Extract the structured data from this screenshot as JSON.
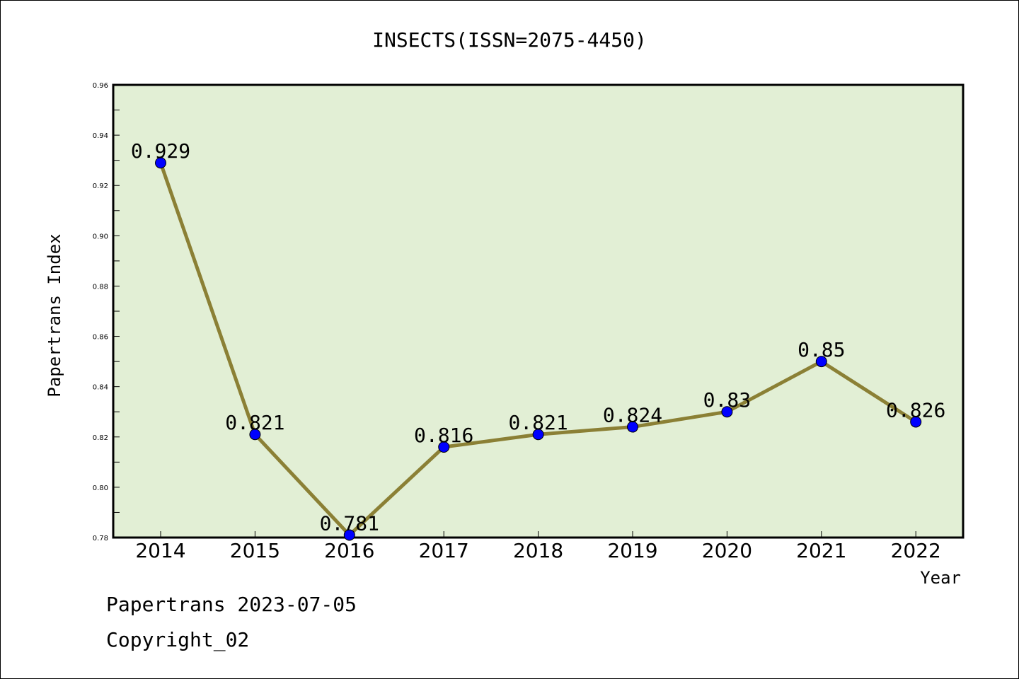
{
  "chart_data": {
    "type": "line",
    "title": "INSECTS(ISSN=2075-4450)",
    "xlabel": "Year",
    "ylabel": "Papertrans Index",
    "categories": [
      "2014",
      "2015",
      "2016",
      "2017",
      "2018",
      "2019",
      "2020",
      "2021",
      "2022"
    ],
    "values": [
      0.929,
      0.821,
      0.781,
      0.816,
      0.821,
      0.824,
      0.83,
      0.85,
      0.826
    ],
    "data_labels": [
      "0.929",
      "0.821",
      "0.781",
      "0.816",
      "0.821",
      "0.824",
      "0.83",
      "0.85",
      "0.826"
    ],
    "ylim": [
      0.78,
      0.96
    ],
    "yticks": [
      "0.78",
      "0.80",
      "0.82",
      "0.84",
      "0.86",
      "0.88",
      "0.90",
      "0.92",
      "0.94",
      "0.96"
    ],
    "grid": false,
    "legend": "none",
    "colors": {
      "plot_background": "#e2efd5",
      "line": "#8b8035",
      "marker": "#0000ff"
    }
  },
  "footer": {
    "line1": "Papertrans 2023-07-05",
    "line2": "Copyright_02"
  }
}
